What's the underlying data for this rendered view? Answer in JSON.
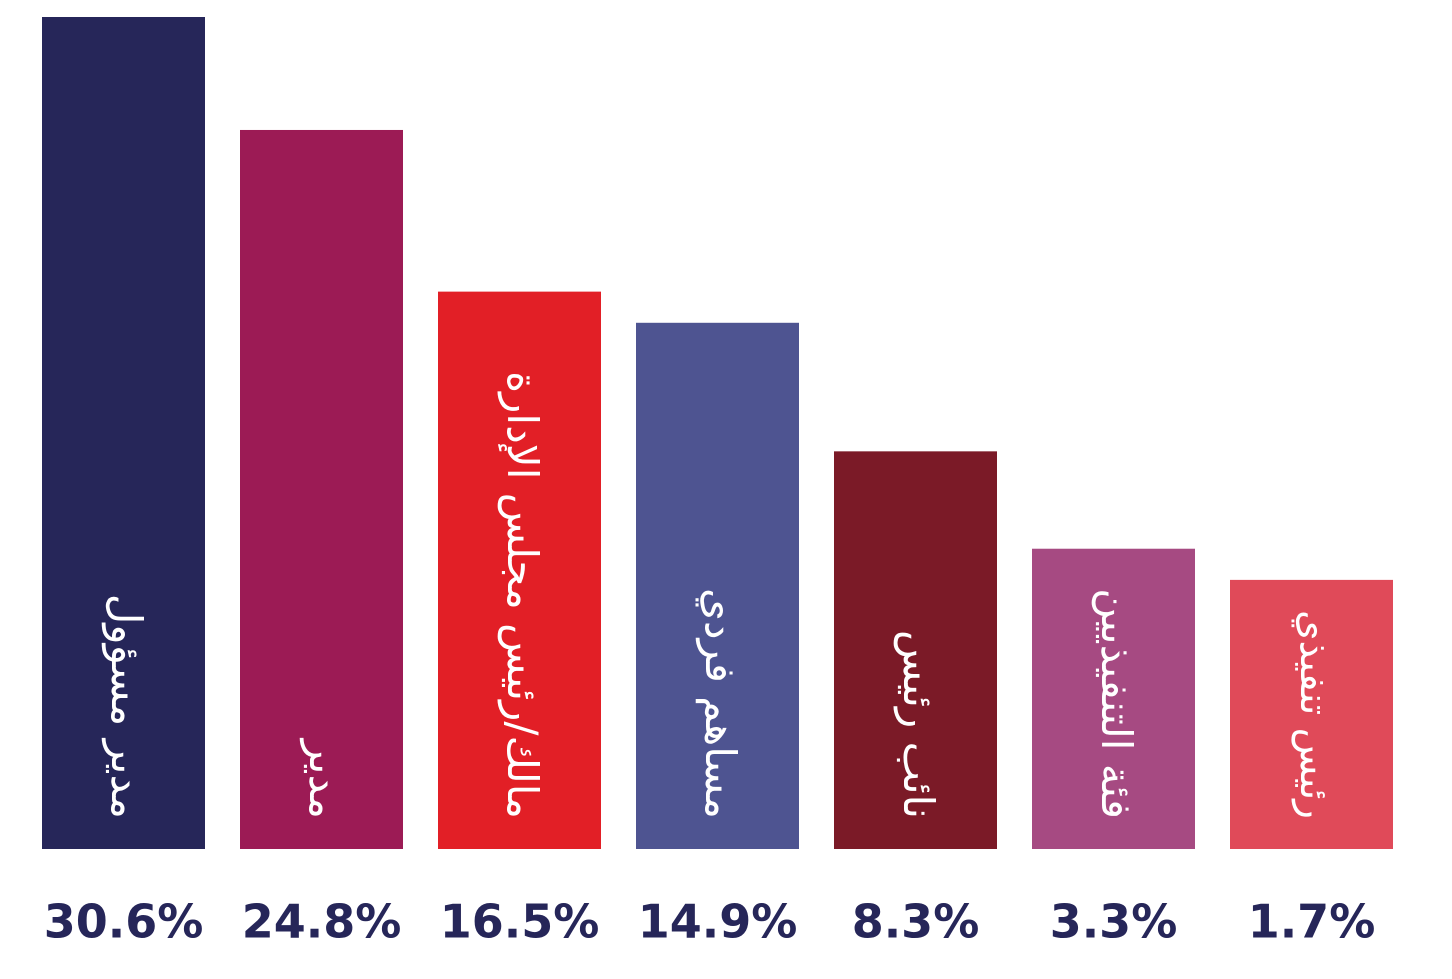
{
  "chart_data": {
    "type": "bar",
    "categories": [
      "مدير مسؤول",
      "مدير",
      "مالك/رئيس مجلس الإدارة",
      "مساهم فردي",
      "نائب رئيس",
      "فئة التنفيذيين",
      "رئيس تنفيذي"
    ],
    "values": [
      30.6,
      24.8,
      16.5,
      14.9,
      8.3,
      3.3,
      1.7
    ],
    "value_labels": [
      "30.6%",
      "24.8%",
      "16.5%",
      "14.9%",
      "8.3%",
      "3.3%",
      "1.7%"
    ],
    "colors": [
      "#262659",
      "#9c1b55",
      "#e21f26",
      "#4e5491",
      "#7b1a27",
      "#a64a82",
      "#e04a59"
    ]
  }
}
